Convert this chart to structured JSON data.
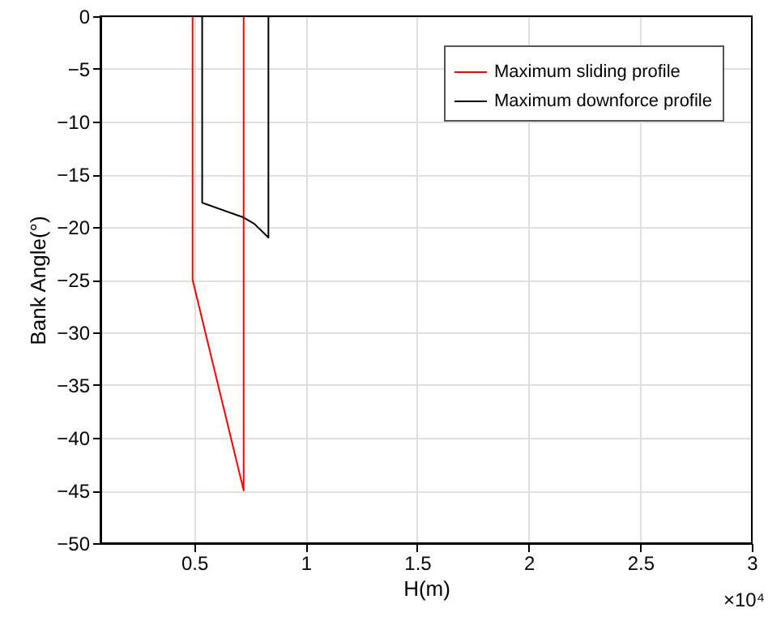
{
  "chart_data": {
    "type": "line",
    "xlabel": "H(m)",
    "ylabel": "Bank Angle(°)",
    "series": [
      {
        "name": "Maximum sliding profile",
        "color": "#ff0000",
        "x": [
          0.493,
          0.493,
          0.722,
          0.722,
          0.819
        ],
        "values": [
          0,
          -25,
          -45,
          0,
          0
        ]
      },
      {
        "name": "Maximum downforce profile",
        "color": "#000000",
        "x": [
          0.464,
          0.536,
          0.536,
          0.722,
          0.77,
          0.833,
          0.833
        ],
        "values": [
          0,
          0,
          -17.7,
          -19.1,
          -19.7,
          -21,
          0
        ]
      }
    ],
    "xlim": [
      0.08,
      3
    ],
    "xticks": [
      0.5,
      1,
      1.5,
      2,
      2.5,
      3
    ],
    "ylim": [
      -50,
      0
    ],
    "yticks": [
      0,
      -5,
      -10,
      -15,
      -20,
      -25,
      -30,
      -35,
      -40,
      -45,
      -50
    ],
    "annotations": [
      "×10⁴"
    ],
    "grid": true,
    "legend": "top right",
    "line_style": "solid",
    "marker": "none"
  }
}
